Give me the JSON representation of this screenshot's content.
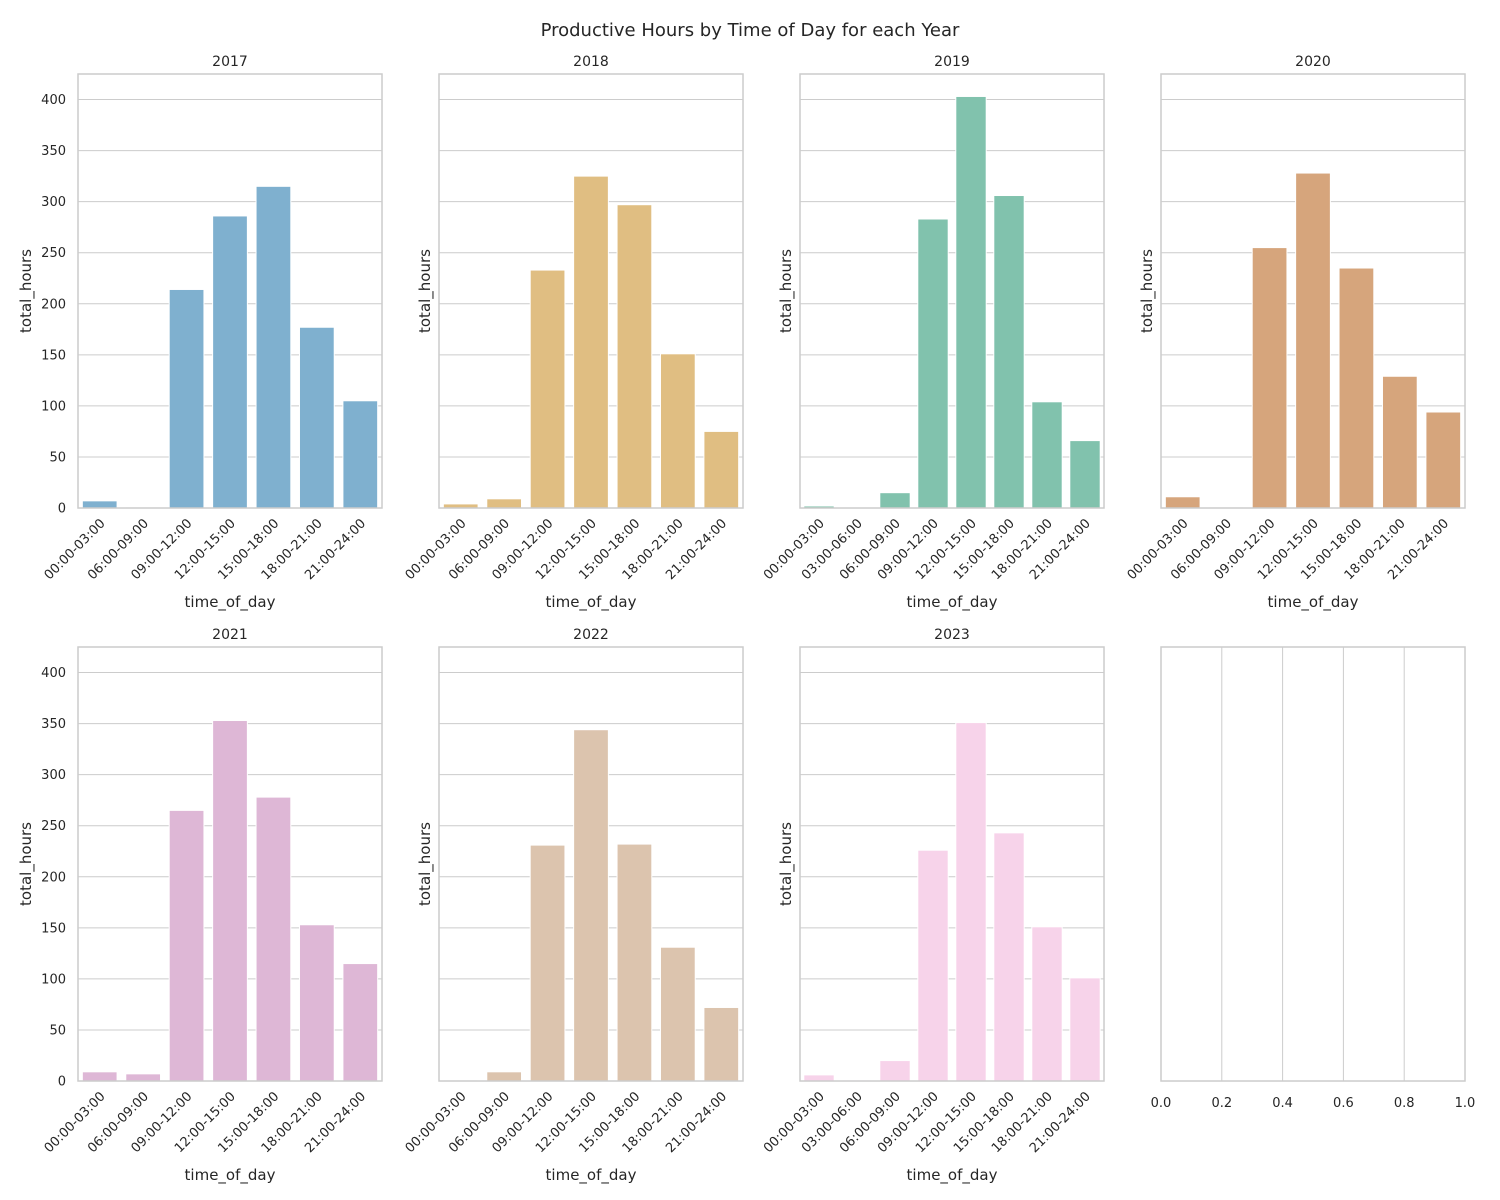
{
  "figure": {
    "title": "Productive Hours by Time of Day for each Year"
  },
  "chart_data": [
    {
      "type": "bar",
      "title": "2017",
      "xlabel": "time_of_day",
      "ylabel": "total_hours",
      "ylim": [
        0,
        425
      ],
      "yticks": [
        0,
        50,
        100,
        150,
        200,
        250,
        300,
        350,
        400
      ],
      "grid": "y",
      "color": "#7fb0cf",
      "categories": [
        "00:00-03:00",
        "06:00-09:00",
        "09:00-12:00",
        "12:00-15:00",
        "15:00-18:00",
        "18:00-21:00",
        "21:00-24:00"
      ],
      "values": [
        7,
        1,
        214,
        286,
        315,
        177,
        105
      ]
    },
    {
      "type": "bar",
      "title": "2018",
      "xlabel": "time_of_day",
      "ylabel": "total_hours",
      "ylim": [
        0,
        425
      ],
      "grid": "y",
      "color": "#e0be82",
      "categories": [
        "00:00-03:00",
        "06:00-09:00",
        "09:00-12:00",
        "12:00-15:00",
        "15:00-18:00",
        "18:00-21:00",
        "21:00-24:00"
      ],
      "values": [
        4,
        9,
        233,
        325,
        297,
        151,
        75
      ]
    },
    {
      "type": "bar",
      "title": "2019",
      "xlabel": "time_of_day",
      "ylabel": "total_hours",
      "ylim": [
        0,
        425
      ],
      "grid": "y",
      "color": "#81c2ad",
      "categories": [
        "00:00-03:00",
        "03:00-06:00",
        "06:00-09:00",
        "09:00-12:00",
        "12:00-15:00",
        "15:00-18:00",
        "18:00-21:00",
        "21:00-24:00"
      ],
      "values": [
        2,
        0,
        15,
        283,
        403,
        306,
        104,
        66
      ]
    },
    {
      "type": "bar",
      "title": "2020",
      "xlabel": "time_of_day",
      "ylabel": "total_hours",
      "ylim": [
        0,
        425
      ],
      "grid": "y",
      "color": "#d6a57c",
      "categories": [
        "00:00-03:00",
        "06:00-09:00",
        "09:00-12:00",
        "12:00-15:00",
        "15:00-18:00",
        "18:00-21:00",
        "21:00-24:00"
      ],
      "values": [
        11,
        1,
        255,
        328,
        235,
        129,
        94
      ]
    },
    {
      "type": "bar",
      "title": "2021",
      "xlabel": "time_of_day",
      "ylabel": "total_hours",
      "ylim": [
        0,
        425
      ],
      "yticks": [
        0,
        50,
        100,
        150,
        200,
        250,
        300,
        350,
        400
      ],
      "grid": "y",
      "color": "#deb7d6",
      "categories": [
        "00:00-03:00",
        "06:00-09:00",
        "09:00-12:00",
        "12:00-15:00",
        "15:00-18:00",
        "18:00-21:00",
        "21:00-24:00"
      ],
      "values": [
        9,
        7,
        265,
        353,
        278,
        153,
        115
      ]
    },
    {
      "type": "bar",
      "title": "2022",
      "xlabel": "time_of_day",
      "ylabel": "total_hours",
      "ylim": [
        0,
        425
      ],
      "grid": "y",
      "color": "#dcc4ae",
      "categories": [
        "00:00-03:00",
        "06:00-09:00",
        "09:00-12:00",
        "12:00-15:00",
        "15:00-18:00",
        "18:00-21:00",
        "21:00-24:00"
      ],
      "values": [
        1,
        9,
        231,
        344,
        232,
        131,
        72
      ]
    },
    {
      "type": "bar",
      "title": "2023",
      "xlabel": "time_of_day",
      "ylabel": "total_hours",
      "ylim": [
        0,
        425
      ],
      "grid": "y",
      "color": "#f7d3ea",
      "categories": [
        "00:00-03:00",
        "03:00-06:00",
        "06:00-09:00",
        "09:00-12:00",
        "12:00-15:00",
        "15:00-18:00",
        "18:00-21:00",
        "21:00-24:00"
      ],
      "values": [
        6,
        1,
        20,
        226,
        351,
        243,
        151,
        101
      ]
    },
    {
      "type": "empty",
      "title": "",
      "xlim": [
        0,
        1
      ],
      "xticks": [
        "0.0",
        "0.2",
        "0.4",
        "0.6",
        "0.8",
        "1.0"
      ],
      "grid": "x"
    }
  ]
}
